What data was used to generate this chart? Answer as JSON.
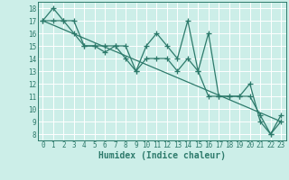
{
  "xlabel": "Humidex (Indice chaleur)",
  "bg_color": "#cceee8",
  "line_color": "#2d7a6b",
  "grid_color": "#ffffff",
  "xlim": [
    -0.5,
    23.5
  ],
  "ylim": [
    7.5,
    18.5
  ],
  "xticks": [
    0,
    1,
    2,
    3,
    4,
    5,
    6,
    7,
    8,
    9,
    10,
    11,
    12,
    13,
    14,
    15,
    16,
    17,
    18,
    19,
    20,
    21,
    22,
    23
  ],
  "yticks": [
    8,
    9,
    10,
    11,
    12,
    13,
    14,
    15,
    16,
    17,
    18
  ],
  "series1_x": [
    0,
    1,
    2,
    3,
    4,
    5,
    6,
    7,
    8,
    9,
    10,
    11,
    12,
    13,
    14,
    15,
    16,
    17,
    18,
    19,
    20,
    21,
    22,
    23
  ],
  "series1_y": [
    17,
    18,
    17,
    17,
    15,
    15,
    15,
    15,
    15,
    13,
    15,
    16,
    15,
    14,
    17,
    13,
    16,
    11,
    11,
    11,
    12,
    9,
    8,
    9
  ],
  "series2_x": [
    0,
    1,
    2,
    3,
    4,
    5,
    6,
    7,
    8,
    9,
    10,
    11,
    12,
    13,
    14,
    15,
    16,
    17,
    18,
    19,
    20,
    21,
    22,
    23
  ],
  "series2_y": [
    17,
    17,
    17,
    16,
    15,
    15,
    14.5,
    15,
    14,
    13,
    14,
    14,
    14,
    13,
    14,
    13,
    11,
    11,
    11,
    11,
    11,
    9.5,
    8,
    9.5
  ],
  "series3_x": [
    0,
    23
  ],
  "series3_y": [
    17,
    9
  ],
  "marker": "+",
  "markersize": 4,
  "linewidth": 0.9,
  "xlabel_fontsize": 7,
  "tick_fontsize": 5.5
}
